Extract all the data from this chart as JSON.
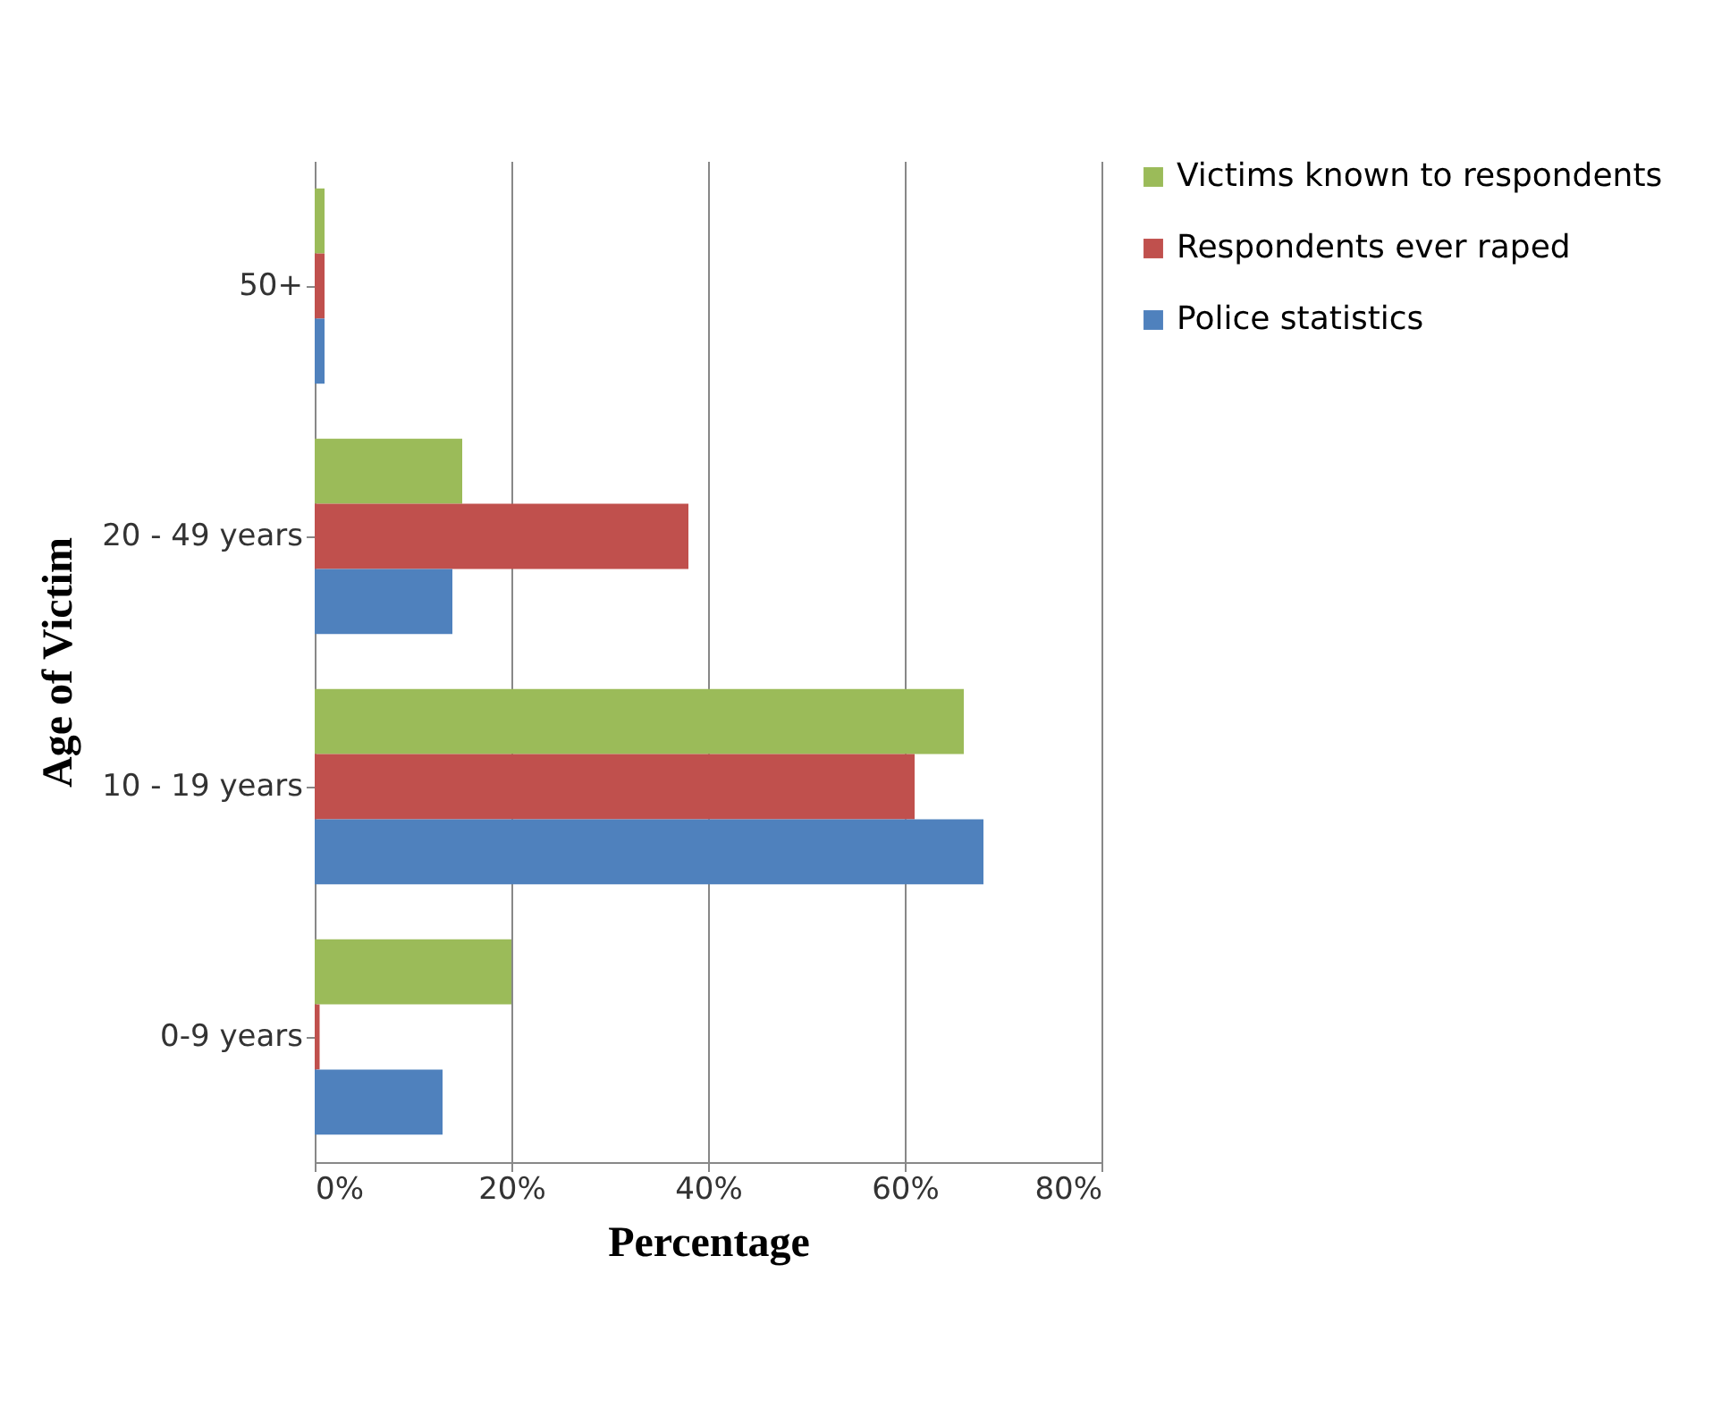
{
  "chart_data": {
    "type": "bar",
    "orientation": "horizontal",
    "ylabel": "Age of Victim",
    "xlabel": "Percentage",
    "categories": [
      "50+",
      "20 - 49 years",
      "10 - 19 years",
      "0-9 years"
    ],
    "series": [
      {
        "name": "Victims known to respondents",
        "color": "#9bbb59",
        "values": [
          1,
          15,
          66,
          20
        ]
      },
      {
        "name": "Respondents ever raped",
        "color": "#c0504d",
        "values": [
          1,
          38,
          61,
          0.5
        ]
      },
      {
        "name": "Police statistics",
        "color": "#4f81bd",
        "values": [
          1,
          14,
          68,
          13
        ]
      }
    ],
    "xlim": [
      0,
      80
    ],
    "xticks": [
      {
        "value": 0,
        "label": "0%"
      },
      {
        "value": 20,
        "label": "20%"
      },
      {
        "value": 40,
        "label": "40%"
      },
      {
        "value": 60,
        "label": "60%"
      },
      {
        "value": 80,
        "label": "80%"
      }
    ],
    "grid": "x",
    "legend": "right"
  }
}
